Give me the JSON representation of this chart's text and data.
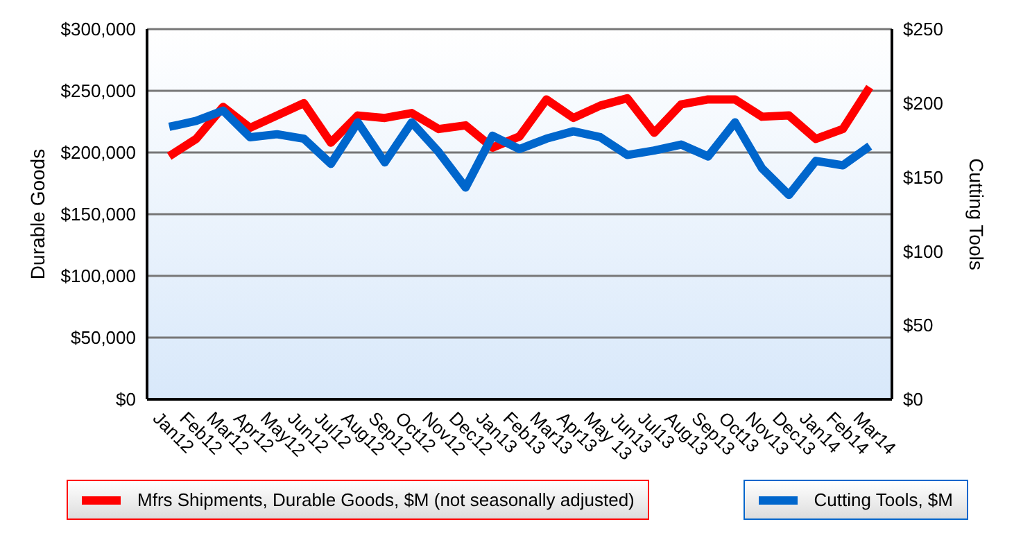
{
  "chart_data": {
    "type": "line",
    "xlabel": null,
    "ylabel": "Durable Goods",
    "y2label": "Cutting Tools",
    "categories": [
      "Jan12",
      "Feb12",
      "Mar12",
      "Apr12",
      "May12",
      "Jun12",
      "Jul12",
      "Aug12",
      "Sep12",
      "Oct12",
      "Nov12",
      "Dec12",
      "Jan13",
      "Feb13",
      "Mar13",
      "Apr13",
      "May 13",
      "Jun13",
      "Jul13",
      "Aug13",
      "Sep13",
      "Oct13",
      "Nov13",
      "Dec13",
      "Jan14",
      "Feb14",
      "Mar14"
    ],
    "series": [
      {
        "name": "Mfrs Shipments, Durable Goods, $M (not seasonally adjusted)",
        "color": "#ff0000",
        "values": [
          197000,
          211000,
          237000,
          220000,
          230000,
          240000,
          208000,
          230000,
          228000,
          232000,
          219000,
          222000,
          204000,
          213000,
          243000,
          228000,
          238000,
          244000,
          216000,
          239000,
          243000,
          243000,
          229000,
          230000,
          211000,
          219000,
          253000
        ]
      },
      {
        "name": "Cutting Tools, $M",
        "color": "#0066cc",
        "axis": "y2",
        "values": [
          184,
          188,
          195,
          177,
          179,
          176,
          159,
          187,
          160,
          187,
          167,
          143,
          178,
          169,
          176,
          181,
          177,
          165,
          168,
          172,
          164,
          187,
          156,
          138,
          161,
          158,
          171
        ]
      }
    ],
    "ylim": [
      0,
      300000
    ],
    "yticks": [
      {
        "value": 0,
        "label": "$0"
      },
      {
        "value": 50000,
        "label": "$50,000"
      },
      {
        "value": 100000,
        "label": "$100,000"
      },
      {
        "value": 150000,
        "label": "$150,000"
      },
      {
        "value": 200000,
        "label": "$200,000"
      },
      {
        "value": 250000,
        "label": "$250,000"
      },
      {
        "value": 300000,
        "label": "$300,000"
      }
    ],
    "y2lim": [
      0,
      250
    ],
    "y2ticks": [
      {
        "value": 0,
        "label": "$0"
      },
      {
        "value": 50,
        "label": "$50"
      },
      {
        "value": 100,
        "label": "$100"
      },
      {
        "value": 150,
        "label": "$150"
      },
      {
        "value": 200,
        "label": "$200"
      },
      {
        "value": 250,
        "label": "$250"
      }
    ],
    "grid": "y",
    "legend": "bottom",
    "marker": "none",
    "line_style": "solid"
  }
}
